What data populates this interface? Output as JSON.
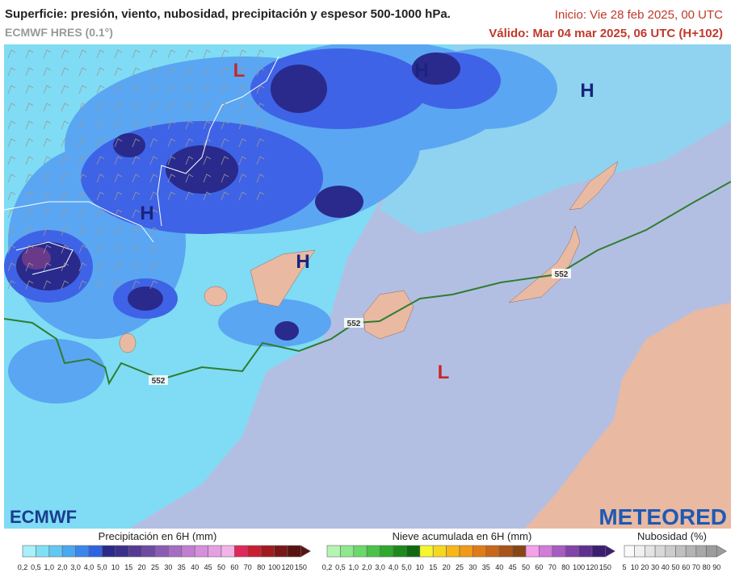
{
  "header": {
    "title": "Superficie: presión, viento, nubosidad, precipitación y espesor 500-1000 hPa.",
    "model": "ECMWF HRES (0.1°)",
    "init": "Inicio: Vie 28 feb 2025, 00 UTC",
    "valid": "Válido: Mar 04 mar 2025, 06 UTC (H+102)"
  },
  "map": {
    "pressure_centers": [
      "L",
      "H",
      "H",
      "H",
      "H",
      "L"
    ],
    "thickness_labels": [
      "552",
      "552",
      "552"
    ]
  },
  "logos": {
    "left": "ECMWF",
    "right": "METEORED"
  },
  "legends": {
    "precipitation": {
      "title": "Precipitación en 6H (mm)",
      "labels": [
        "0,2",
        "0,5",
        "1,0",
        "2,0",
        "3,0",
        "4,0",
        "5,0",
        "10",
        "15",
        "20",
        "25",
        "30",
        "35",
        "40",
        "45",
        "50",
        "60",
        "70",
        "80",
        "100",
        "120",
        "150"
      ]
    },
    "snow": {
      "title": "Nieve acumulada en 6H (mm)",
      "labels": [
        "0,2",
        "0,5",
        "1,0",
        "2,0",
        "3,0",
        "4,0",
        "5,0",
        "10",
        "15",
        "20",
        "25",
        "30",
        "35",
        "40",
        "45",
        "50",
        "60",
        "70",
        "80",
        "100",
        "120",
        "150"
      ]
    },
    "cloud": {
      "title": "Nubosidad (%)",
      "labels": [
        "5",
        "10",
        "20",
        "30",
        "40",
        "50",
        "60",
        "70",
        "80",
        "90"
      ]
    }
  }
}
